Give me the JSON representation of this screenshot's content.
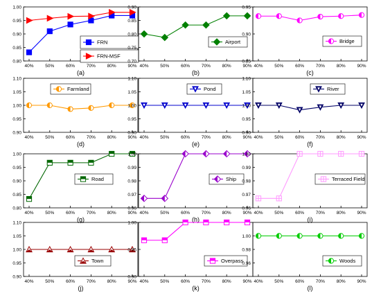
{
  "chart_data": [
    {
      "panel": "(a)",
      "type": "line",
      "categories": [
        "40%",
        "50%",
        "60%",
        "70%",
        "80%",
        "90%"
      ],
      "ylim": [
        0.8,
        1.0
      ],
      "yticks": [
        "0.80",
        "0.85",
        "0.90",
        "0.95",
        "1.00"
      ],
      "series": [
        {
          "name": "FRN",
          "values": [
            0.832,
            0.91,
            0.935,
            0.95,
            0.968,
            0.968
          ],
          "color": "#0000ff",
          "marker": "square"
        },
        {
          "name": "FRN-MSF",
          "values": [
            0.95,
            0.958,
            0.965,
            0.966,
            0.98,
            0.98
          ],
          "color": "#ff0000",
          "marker": "triangle-right"
        }
      ]
    },
    {
      "panel": "(b)",
      "type": "line",
      "categories": [
        "40%",
        "50%",
        "60%",
        "70%",
        "80%",
        "90%"
      ],
      "ylim": [
        0.7,
        0.9
      ],
      "yticks": [
        "0.70",
        "0.75",
        "0.80",
        "0.85",
        "0.90"
      ],
      "series": [
        {
          "name": "Airport",
          "values": [
            0.8,
            0.787,
            0.833,
            0.833,
            0.867,
            0.867
          ],
          "color": "#008000",
          "marker": "diamond"
        }
      ]
    },
    {
      "panel": "(c)",
      "type": "line",
      "categories": [
        "40%",
        "50%",
        "60%",
        "70%",
        "80%",
        "90%"
      ],
      "ylim": [
        0.85,
        0.95
      ],
      "yticks": [
        "0.85",
        "0.90",
        "0.95"
      ],
      "series": [
        {
          "name": "Bridge",
          "values": [
            0.933,
            0.933,
            0.925,
            0.932,
            0.933,
            0.935
          ],
          "color": "#ff00ff",
          "marker": "circle-half"
        }
      ]
    },
    {
      "panel": "(d)",
      "type": "line",
      "categories": [
        "40%",
        "50%",
        "60%",
        "70%",
        "80%",
        "90%"
      ],
      "ylim": [
        0.9,
        1.1
      ],
      "yticks": [
        "0.90",
        "0.95",
        "1.00",
        "1.05",
        "1.10"
      ],
      "series": [
        {
          "name": "Farmland",
          "values": [
            1.0,
            1.0,
            0.986,
            0.99,
            1.0,
            1.0
          ],
          "color": "#ff9900",
          "marker": "circle-half"
        }
      ]
    },
    {
      "panel": "(e)",
      "type": "line",
      "categories": [
        "40%",
        "50%",
        "60%",
        "70%",
        "80%",
        "90%"
      ],
      "ylim": [
        0.9,
        1.1
      ],
      "yticks": [
        "0.90",
        "0.95",
        "1.00",
        "1.05",
        "1.10"
      ],
      "series": [
        {
          "name": "Pond",
          "values": [
            1.0,
            1.0,
            1.0,
            1.0,
            1.0,
            1.0
          ],
          "color": "#0000cc",
          "marker": "triangle-down"
        }
      ]
    },
    {
      "panel": "(f)",
      "type": "line",
      "categories": [
        "40%",
        "50%",
        "60%",
        "70%",
        "80%",
        "90%"
      ],
      "ylim": [
        0.9,
        1.1
      ],
      "yticks": [
        "0.90",
        "0.95",
        "1.00",
        "1.05",
        "1.10"
      ],
      "series": [
        {
          "name": "River",
          "values": [
            1.0,
            1.0,
            0.983,
            0.993,
            1.0,
            1.0
          ],
          "color": "#000066",
          "marker": "triangle-down"
        }
      ]
    },
    {
      "panel": "(g)",
      "type": "line",
      "categories": [
        "40%",
        "50%",
        "60%",
        "70%",
        "80%",
        "90%"
      ],
      "ylim": [
        0.8,
        1.0
      ],
      "yticks": [
        "0.80",
        "0.85",
        "0.90",
        "0.95",
        "1.00"
      ],
      "series": [
        {
          "name": "Road",
          "values": [
            0.833,
            0.967,
            0.967,
            0.967,
            1.0,
            1.0
          ],
          "color": "#006600",
          "marker": "square-half"
        }
      ]
    },
    {
      "panel": "(h)",
      "type": "line",
      "categories": [
        "40%",
        "50%",
        "60%",
        "70%",
        "80%",
        "90%"
      ],
      "ylim": [
        0.96,
        1.0
      ],
      "yticks": [
        "0.96",
        "0.97",
        "0.98",
        "0.99",
        "1.00"
      ],
      "series": [
        {
          "name": "Ship",
          "values": [
            0.967,
            0.967,
            1.0,
            1.0,
            1.0,
            1.0
          ],
          "color": "#9900cc",
          "marker": "diamond-half"
        }
      ]
    },
    {
      "panel": "(i)",
      "type": "line",
      "categories": [
        "40%",
        "50%",
        "60%",
        "70%",
        "80%",
        "90%"
      ],
      "ylim": [
        0.96,
        1.0
      ],
      "yticks": [
        "0.96",
        "0.97",
        "0.98",
        "0.99",
        "1.00"
      ],
      "series": [
        {
          "name": "Terraced Field",
          "values": [
            0.967,
            0.967,
            1.0,
            1.0,
            1.0,
            1.0
          ],
          "color": "#ff99ff",
          "marker": "square-cross"
        }
      ]
    },
    {
      "panel": "(j)",
      "type": "line",
      "categories": [
        "40%",
        "50%",
        "60%",
        "70%",
        "80%",
        "90%"
      ],
      "ylim": [
        0.9,
        1.1
      ],
      "yticks": [
        "0.90",
        "0.95",
        "1.00",
        "1.05",
        "1.10"
      ],
      "series": [
        {
          "name": "Town",
          "values": [
            1.0,
            1.0,
            1.0,
            1.0,
            1.0,
            1.0
          ],
          "color": "#990000",
          "marker": "triangle-up"
        }
      ]
    },
    {
      "panel": "(k)",
      "type": "line",
      "categories": [
        "40%",
        "50%",
        "60%",
        "70%",
        "80%",
        "90%"
      ],
      "ylim": [
        0.9,
        1.0
      ],
      "yticks": [
        "0.90",
        "0.95",
        "1.00"
      ],
      "series": [
        {
          "name": "Overpass",
          "values": [
            0.967,
            0.967,
            1.0,
            1.0,
            1.0,
            1.0
          ],
          "color": "#ff00ff",
          "marker": "square-half"
        }
      ]
    },
    {
      "panel": "(l)",
      "type": "line",
      "categories": [
        "40%",
        "50%",
        "60%",
        "70%",
        "80%",
        "90%"
      ],
      "ylim": [
        0.94,
        1.02
      ],
      "yticks": [
        "0.96",
        "0.98",
        "1.00"
      ],
      "series": [
        {
          "name": "Woods",
          "values": [
            1.0,
            1.0,
            1.0,
            1.0,
            1.0,
            1.0
          ],
          "color": "#00cc00",
          "marker": "circle-half"
        }
      ]
    }
  ]
}
